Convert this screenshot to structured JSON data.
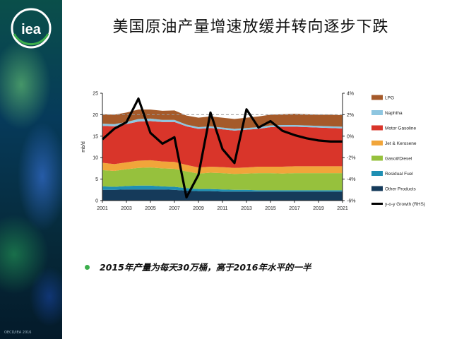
{
  "slide": {
    "title": "美国原油产量增速放缓并转向逐步下跌",
    "logo_text": "iea",
    "bullet": "2015年产量为每天30万桶，高于2016年水平的一半",
    "copyright": "OECD/IEA 2016"
  },
  "colors": {
    "LPG": "#a55a2a",
    "Naphtha": "#8ec6e0",
    "Motor Gasoline": "#d9352a",
    "Jet & Kerosene": "#f1a53a",
    "Gasoil/Diesel": "#96c13d",
    "Residual Fuel": "#1f8fb3",
    "Other Products": "#153a5a",
    "y-o-y Growth (RHS)": "#000000",
    "bullet": "#3cae4c"
  },
  "chart_data": {
    "type": "area",
    "ylabel": "mb/d",
    "ylim": [
      0,
      25
    ],
    "y_ticks": [
      "0",
      "5",
      "10",
      "15",
      "20",
      "25"
    ],
    "y2lim": [
      -6,
      4
    ],
    "y2_ticks": [
      "-6%",
      "-4%",
      "-2%",
      "0%",
      "2%",
      "4%"
    ],
    "x_ticks": [
      "2001",
      "2003",
      "2005",
      "2007",
      "2009",
      "2011",
      "2013",
      "2015",
      "2017",
      "2019",
      "2021"
    ],
    "x": [
      2001,
      2002,
      2003,
      2004,
      2005,
      2006,
      2007,
      2008,
      2009,
      2010,
      2011,
      2012,
      2013,
      2014,
      2015,
      2016,
      2017,
      2018,
      2019,
      2020,
      2021
    ],
    "series": [
      {
        "name": "Other Products",
        "values": [
          2.5,
          2.5,
          2.6,
          2.6,
          2.6,
          2.6,
          2.5,
          2.3,
          2.2,
          2.2,
          2.1,
          2.1,
          2.1,
          2.1,
          2.1,
          2.1,
          2.1,
          2.1,
          2.1,
          2.1,
          2.1
        ]
      },
      {
        "name": "Residual Fuel",
        "values": [
          0.8,
          0.7,
          0.8,
          0.9,
          0.9,
          0.7,
          0.7,
          0.6,
          0.5,
          0.5,
          0.5,
          0.4,
          0.4,
          0.3,
          0.3,
          0.3,
          0.3,
          0.3,
          0.3,
          0.3,
          0.3
        ]
      },
      {
        "name": "Gasoil/Diesel",
        "values": [
          3.8,
          3.7,
          3.9,
          4.1,
          4.2,
          4.2,
          4.2,
          3.9,
          3.6,
          3.8,
          3.8,
          3.7,
          3.8,
          4.0,
          4.0,
          3.9,
          4.0,
          4.0,
          4.0,
          4.0,
          4.0
        ]
      },
      {
        "name": "Jet & Kerosene",
        "values": [
          1.7,
          1.6,
          1.6,
          1.7,
          1.7,
          1.6,
          1.6,
          1.5,
          1.4,
          1.4,
          1.4,
          1.4,
          1.4,
          1.5,
          1.5,
          1.6,
          1.6,
          1.6,
          1.6,
          1.6,
          1.6
        ]
      },
      {
        "name": "Motor Gasoline",
        "values": [
          8.6,
          8.8,
          8.9,
          9.1,
          9.1,
          9.2,
          9.3,
          9.0,
          9.0,
          9.0,
          8.8,
          8.7,
          8.8,
          8.8,
          9.2,
          9.3,
          9.2,
          9.1,
          9.0,
          8.9,
          8.8
        ]
      },
      {
        "name": "Naphtha",
        "values": [
          0.5,
          0.5,
          0.5,
          0.6,
          0.6,
          0.5,
          0.5,
          0.4,
          0.4,
          0.4,
          0.4,
          0.4,
          0.4,
          0.4,
          0.4,
          0.4,
          0.4,
          0.4,
          0.4,
          0.4,
          0.4
        ]
      },
      {
        "name": "LPG",
        "values": [
          2.2,
          2.2,
          2.2,
          2.2,
          2.1,
          2.1,
          2.2,
          2.1,
          2.2,
          2.3,
          2.3,
          2.3,
          2.4,
          2.5,
          2.5,
          2.5,
          2.6,
          2.6,
          2.6,
          2.7,
          2.7
        ]
      },
      {
        "name": "y-o-y Growth (RHS)",
        "axis": "right",
        "values": [
          -0.3,
          0.7,
          1.3,
          3.5,
          0.3,
          -0.7,
          -0.1,
          -5.7,
          -3.6,
          2.2,
          -1.2,
          -2.5,
          2.5,
          0.8,
          1.4,
          0.5,
          0.1,
          -0.2,
          -0.4,
          -0.5,
          -0.5
        ]
      }
    ],
    "dashed_line_rhs": 2,
    "legend_position": "right",
    "grid": false
  }
}
